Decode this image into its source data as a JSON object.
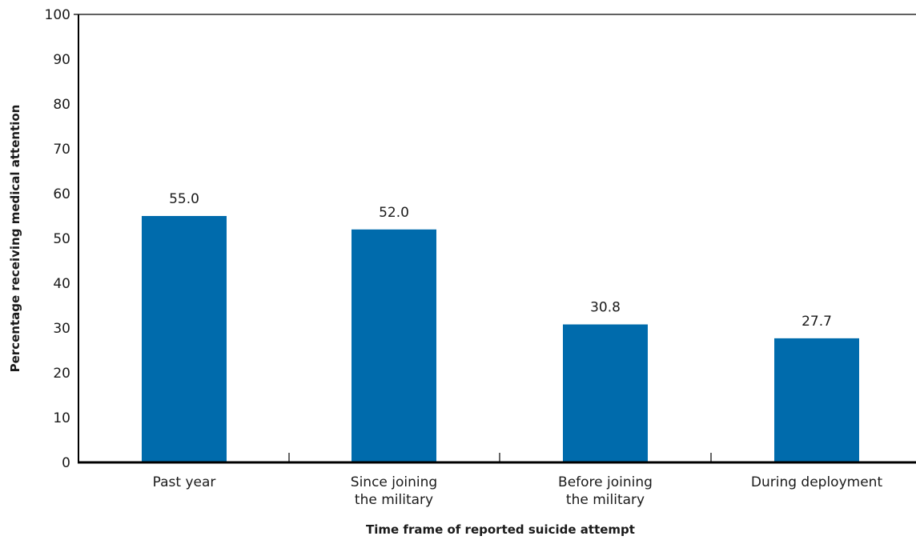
{
  "chart_data": {
    "type": "bar",
    "title": "",
    "xlabel": "Time frame of reported suicide attempt",
    "ylabel": "Percentage receiving medical attention",
    "categories": [
      [
        "Past year"
      ],
      [
        "Since joining",
        "the military"
      ],
      [
        "Before joining",
        "the military"
      ],
      [
        "During deployment"
      ]
    ],
    "values": [
      55.0,
      52.0,
      30.8,
      27.7
    ],
    "value_labels": [
      "55.0",
      "52.0",
      "30.8",
      "27.7"
    ],
    "ylim": [
      0,
      100
    ],
    "yticks": [
      0,
      10,
      20,
      30,
      40,
      50,
      60,
      70,
      80,
      90,
      100
    ],
    "bar_color": "#006bac",
    "axis_color": "#000000",
    "grid": false,
    "legend": "none"
  }
}
